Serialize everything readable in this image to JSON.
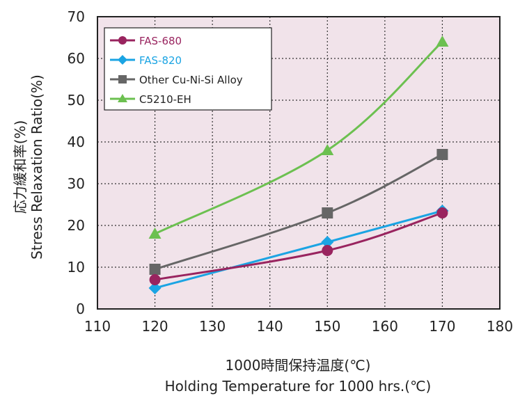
{
  "chart_data": {
    "type": "line",
    "xlabel_jp": "1000時間保持温度(℃)",
    "xlabel": "Holding Temperature for 1000 hrs.(℃)",
    "ylabel_jp": "応力緩和率(%)",
    "ylabel": "Stress Relaxation Ratio(%)",
    "xlim": [
      110,
      180
    ],
    "ylim": [
      0,
      70
    ],
    "xticks": [
      "110",
      "120",
      "130",
      "140",
      "150",
      "160",
      "170",
      "180"
    ],
    "yticks": [
      "0",
      "10",
      "20",
      "30",
      "40",
      "50",
      "60",
      "70"
    ],
    "grid": true,
    "legend_position": "top-left",
    "background_color": "#f1e3ea",
    "series": [
      {
        "name": "FAS-680",
        "color": "#99245f",
        "marker": "circle",
        "x": [
          120,
          150,
          170
        ],
        "y": [
          7,
          14,
          23
        ]
      },
      {
        "name": "FAS-820",
        "color": "#1ba4e3",
        "marker": "diamond",
        "x": [
          120,
          150,
          170
        ],
        "y": [
          5,
          16,
          23.5
        ]
      },
      {
        "name": "Other Cu-Ni-Si Alloy",
        "color": "#666666",
        "marker": "square",
        "x": [
          120,
          150,
          170
        ],
        "y": [
          9.5,
          23,
          37
        ]
      },
      {
        "name": "C5210-EH",
        "color": "#6cc050",
        "marker": "triangle",
        "x": [
          120,
          150,
          170
        ],
        "y": [
          18,
          38,
          64
        ]
      }
    ]
  }
}
